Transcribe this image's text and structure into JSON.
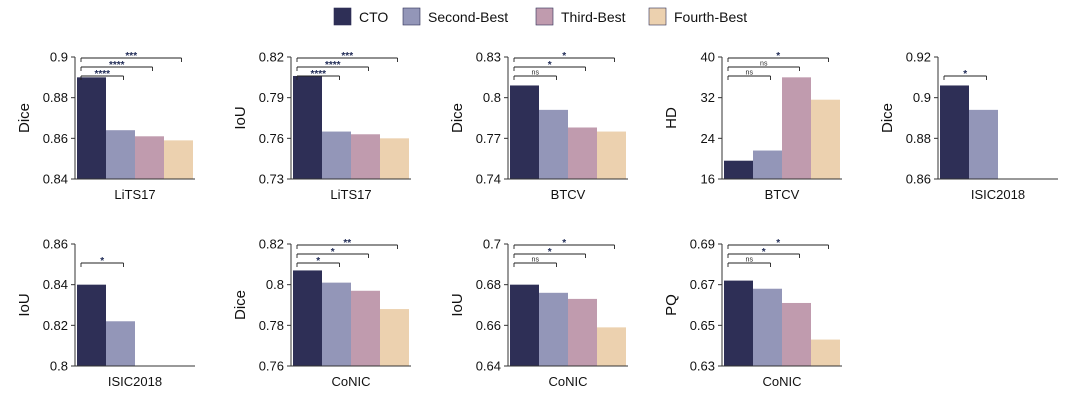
{
  "legend": [
    {
      "name": "CTO",
      "color": "#2e2f56"
    },
    {
      "name": "Second-Best",
      "color": "#9396b8"
    },
    {
      "name": "Third-Best",
      "color": "#c09bae"
    },
    {
      "name": "Fourth-Best",
      "color": "#ecd1af"
    }
  ],
  "chart_data": [
    {
      "type": "bar",
      "dataset": "LiTS17",
      "ylabel": "Dice",
      "ylim": [
        0.84,
        0.9
      ],
      "yticks": [
        "0.84",
        "0.86",
        "0.88",
        "0.9"
      ],
      "series": [
        "CTO",
        "Second-Best",
        "Third-Best",
        "Fourth-Best"
      ],
      "values": [
        0.89,
        0.864,
        0.861,
        0.859
      ],
      "sig": [
        "****",
        "****",
        "***"
      ]
    },
    {
      "type": "bar",
      "dataset": "LiTS17",
      "ylabel": "IoU",
      "ylim": [
        0.73,
        0.82
      ],
      "yticks": [
        "0.73",
        "0.76",
        "0.79",
        "0.82"
      ],
      "series": [
        "CTO",
        "Second-Best",
        "Third-Best",
        "Fourth-Best"
      ],
      "values": [
        0.806,
        0.765,
        0.763,
        0.76
      ],
      "sig": [
        "****",
        "****",
        "***"
      ]
    },
    {
      "type": "bar",
      "dataset": "BTCV",
      "ylabel": "Dice",
      "ylim": [
        0.74,
        0.83
      ],
      "yticks": [
        "0.74",
        "0.77",
        "0.8",
        "0.83"
      ],
      "series": [
        "CTO",
        "Second-Best",
        "Third-Best",
        "Fourth-Best"
      ],
      "values": [
        0.809,
        0.791,
        0.778,
        0.775
      ],
      "sig": [
        "ns",
        "*",
        "*"
      ]
    },
    {
      "type": "bar",
      "dataset": "BTCV",
      "ylabel": "HD",
      "ylim": [
        16,
        40
      ],
      "yticks": [
        "16",
        "24",
        "32",
        "40"
      ],
      "series": [
        "CTO",
        "Second-Best",
        "Third-Best",
        "Fourth-Best"
      ],
      "values": [
        19.6,
        21.6,
        36.0,
        31.6
      ],
      "sig": [
        "ns",
        "ns",
        "*"
      ]
    },
    {
      "type": "bar",
      "dataset": "ISIC2018",
      "ylabel": "Dice",
      "ylim": [
        0.86,
        0.92
      ],
      "yticks": [
        "0.86",
        "0.88",
        "0.9",
        "0.92"
      ],
      "series": [
        "CTO",
        "Second-Best"
      ],
      "values": [
        0.906,
        0.894
      ],
      "sig": [
        "*"
      ]
    },
    {
      "type": "bar",
      "dataset": "ISIC2018",
      "ylabel": "IoU",
      "ylim": [
        0.8,
        0.86
      ],
      "yticks": [
        "0.8",
        "0.82",
        "0.84",
        "0.86"
      ],
      "series": [
        "CTO",
        "Second-Best"
      ],
      "values": [
        0.84,
        0.822
      ],
      "sig": [
        "*"
      ]
    },
    {
      "type": "bar",
      "dataset": "CoNIC",
      "ylabel": "Dice",
      "ylim": [
        0.76,
        0.82
      ],
      "yticks": [
        "0.76",
        "0.78",
        "0.8",
        "0.82"
      ],
      "series": [
        "CTO",
        "Second-Best",
        "Third-Best",
        "Fourth-Best"
      ],
      "values": [
        0.807,
        0.801,
        0.797,
        0.788
      ],
      "sig": [
        "*",
        "*",
        "**"
      ]
    },
    {
      "type": "bar",
      "dataset": "CoNIC",
      "ylabel": "IoU",
      "ylim": [
        0.64,
        0.7
      ],
      "yticks": [
        "0.64",
        "0.66",
        "0.68",
        "0.7"
      ],
      "series": [
        "CTO",
        "Second-Best",
        "Third-Best",
        "Fourth-Best"
      ],
      "values": [
        0.68,
        0.676,
        0.673,
        0.659
      ],
      "sig": [
        "ns",
        "*",
        "*"
      ]
    },
    {
      "type": "bar",
      "dataset": "CoNIC",
      "ylabel": "PQ",
      "ylim": [
        0.63,
        0.69
      ],
      "yticks": [
        "0.63",
        "0.65",
        "0.67",
        "0.69"
      ],
      "series": [
        "CTO",
        "Second-Best",
        "Third-Best",
        "Fourth-Best"
      ],
      "values": [
        0.672,
        0.668,
        0.661,
        0.643
      ],
      "sig": [
        "ns",
        "*",
        "*"
      ]
    }
  ]
}
